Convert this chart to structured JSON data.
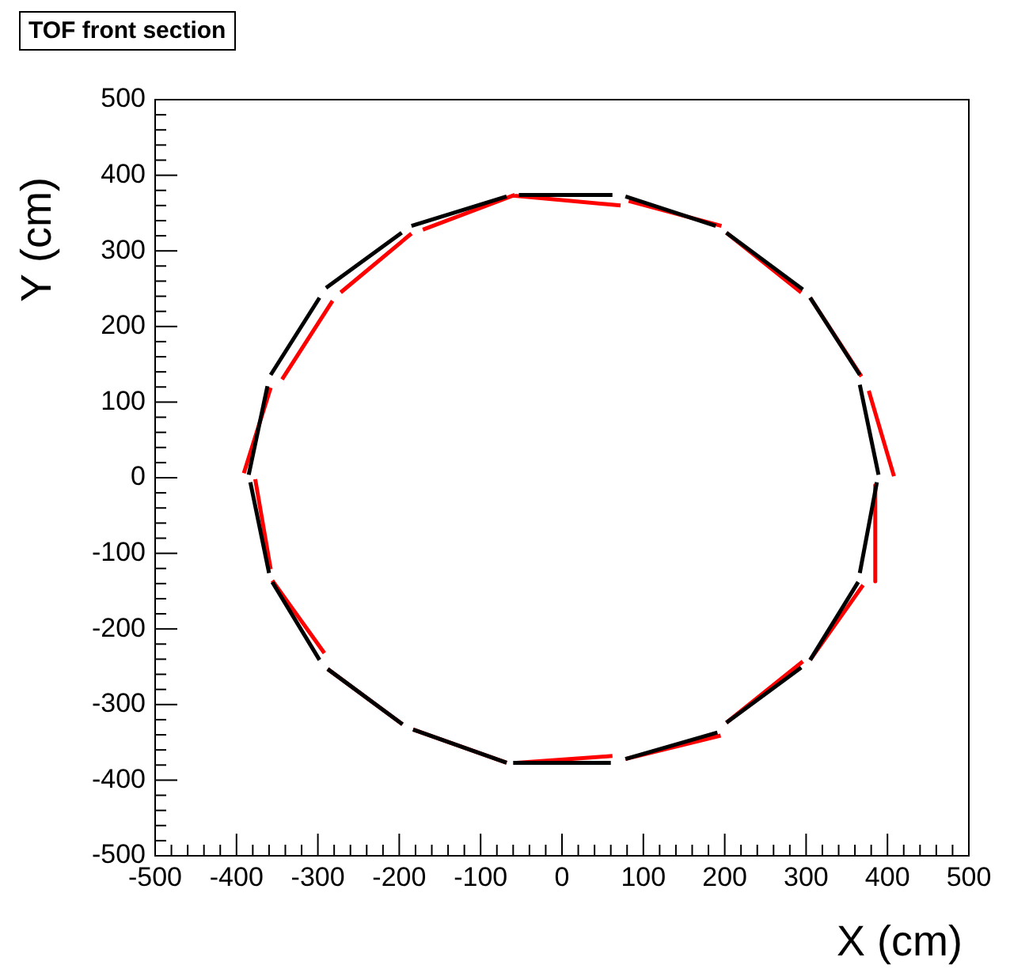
{
  "chart_data": {
    "type": "line",
    "title": "TOF front section",
    "xlabel": "X (cm)",
    "ylabel": "Y (cm)",
    "xlim": [
      -500,
      500
    ],
    "ylim": [
      -500,
      500
    ],
    "xticks": [
      -500,
      {
        "value": -480,
        "label": null
      },
      {
        "value": -460,
        "label": null
      },
      {
        "value": -440,
        "label": null
      },
      {
        "value": -420,
        "label": null
      },
      -400,
      {
        "value": -380,
        "label": null
      },
      {
        "value": -360,
        "label": null
      },
      {
        "value": -340,
        "label": null
      },
      {
        "value": -320,
        "label": null
      },
      -300,
      {
        "value": -280,
        "label": null
      },
      {
        "value": -260,
        "label": null
      },
      {
        "value": -240,
        "label": null
      },
      {
        "value": -220,
        "label": null
      },
      -200,
      {
        "value": -180,
        "label": null
      },
      {
        "value": -160,
        "label": null
      },
      {
        "value": -140,
        "label": null
      },
      {
        "value": -120,
        "label": null
      },
      -100,
      {
        "value": -80,
        "label": null
      },
      {
        "value": -60,
        "label": null
      },
      {
        "value": -40,
        "label": null
      },
      {
        "value": -20,
        "label": null
      },
      0,
      {
        "value": 20,
        "label": null
      },
      {
        "value": 40,
        "label": null
      },
      {
        "value": 60,
        "label": null
      },
      {
        "value": 80,
        "label": null
      },
      100,
      {
        "value": 120,
        "label": null
      },
      {
        "value": 140,
        "label": null
      },
      {
        "value": 160,
        "label": null
      },
      {
        "value": 180,
        "label": null
      },
      200,
      {
        "value": 220,
        "label": null
      },
      {
        "value": 240,
        "label": null
      },
      {
        "value": 260,
        "label": null
      },
      {
        "value": 280,
        "label": null
      },
      300,
      {
        "value": 320,
        "label": null
      },
      {
        "value": 340,
        "label": null
      },
      {
        "value": 360,
        "label": null
      },
      {
        "value": 380,
        "label": null
      },
      400,
      {
        "value": 420,
        "label": null
      },
      {
        "value": 440,
        "label": null
      },
      {
        "value": 460,
        "label": null
      },
      {
        "value": 480,
        "label": null
      },
      500
    ],
    "yticks": [
      -500,
      {
        "value": -480,
        "label": null
      },
      {
        "value": -460,
        "label": null
      },
      {
        "value": -440,
        "label": null
      },
      {
        "value": -420,
        "label": null
      },
      -400,
      {
        "value": -380,
        "label": null
      },
      {
        "value": -360,
        "label": null
      },
      {
        "value": -340,
        "label": null
      },
      {
        "value": -320,
        "label": null
      },
      -300,
      {
        "value": -280,
        "label": null
      },
      {
        "value": -260,
        "label": null
      },
      {
        "value": -240,
        "label": null
      },
      {
        "value": -220,
        "label": null
      },
      -200,
      {
        "value": -180,
        "label": null
      },
      {
        "value": -160,
        "label": null
      },
      {
        "value": -140,
        "label": null
      },
      {
        "value": -120,
        "label": null
      },
      -100,
      {
        "value": -80,
        "label": null
      },
      {
        "value": -60,
        "label": null
      },
      {
        "value": -40,
        "label": null
      },
      {
        "value": -20,
        "label": null
      },
      0,
      {
        "value": 20,
        "label": null
      },
      {
        "value": 40,
        "label": null
      },
      {
        "value": 60,
        "label": null
      },
      {
        "value": 80,
        "label": null
      },
      100,
      {
        "value": 120,
        "label": null
      },
      {
        "value": 140,
        "label": null
      },
      {
        "value": 160,
        "label": null
      },
      {
        "value": 180,
        "label": null
      },
      200,
      {
        "value": 220,
        "label": null
      },
      {
        "value": 240,
        "label": null
      },
      {
        "value": 260,
        "label": null
      },
      {
        "value": 280,
        "label": null
      },
      300,
      {
        "value": 320,
        "label": null
      },
      {
        "value": 340,
        "label": null
      },
      {
        "value": 360,
        "label": null
      },
      {
        "value": 380,
        "label": null
      },
      400,
      {
        "value": 420,
        "label": null
      },
      {
        "value": 440,
        "label": null
      },
      {
        "value": 460,
        "label": null
      },
      {
        "value": 480,
        "label": null
      },
      500
    ],
    "grid": false,
    "legend": false,
    "marker": "none",
    "line_style": "solid",
    "series": [
      {
        "color": "#000000",
        "x": [
          -53,
          62,
          null,
          78,
          189,
          null,
          202,
          296,
          null,
          305,
          366,
          null,
          366,
          389,
          null,
          366,
          387,
          null,
          305,
          364,
          null,
          202,
          294,
          null,
          78,
          191,
          null,
          -60,
          60,
          null,
          -183,
          -68,
          null,
          -288,
          -196,
          null,
          -356,
          -298,
          null,
          -383,
          -360,
          null,
          -385,
          -362,
          null,
          -358,
          -298,
          null,
          -290,
          -197,
          null,
          -185,
          -68
        ],
        "values": [
          374,
          374,
          null,
          372,
          333,
          null,
          324,
          249,
          null,
          238,
          136,
          null,
          123,
          4,
          null,
          -126,
          -6,
          null,
          -241,
          -138,
          null,
          -324,
          -251,
          null,
          -372,
          -337,
          null,
          -377,
          -377,
          null,
          -333,
          -377,
          null,
          -253,
          -326,
          null,
          -138,
          -241,
          null,
          -6,
          -126,
          null,
          4,
          121,
          null,
          136,
          238,
          null,
          251,
          324,
          null,
          333,
          372
        ]
      },
      {
        "color": "#ff0000",
        "x": [
          -58,
          72,
          null,
          82,
          196,
          null,
          202,
          294,
          null,
          305,
          368,
          null,
          377,
          408,
          null,
          385,
          385,
          null,
          305,
          370,
          null,
          202,
          296,
          null,
          78,
          195,
          null,
          -56,
          62,
          null,
          -183,
          -68,
          null,
          -288,
          -196,
          null,
          -356,
          -292,
          null,
          -377,
          -358,
          null,
          -391,
          -358,
          null,
          -344,
          -282,
          null,
          -272,
          -185,
          null,
          -171,
          -58
        ],
        "values": [
          373,
          360,
          null,
          366,
          333,
          null,
          324,
          245,
          null,
          238,
          134,
          null,
          115,
          2,
          null,
          -10,
          -137,
          null,
          -241,
          -142,
          null,
          -324,
          -243,
          null,
          -372,
          -341,
          null,
          -377,
          -368,
          null,
          -333,
          -377,
          null,
          -253,
          -326,
          null,
          -136,
          -232,
          null,
          -2,
          -121,
          null,
          6,
          119,
          null,
          130,
          234,
          null,
          245,
          323,
          null,
          328,
          374
        ]
      }
    ]
  }
}
